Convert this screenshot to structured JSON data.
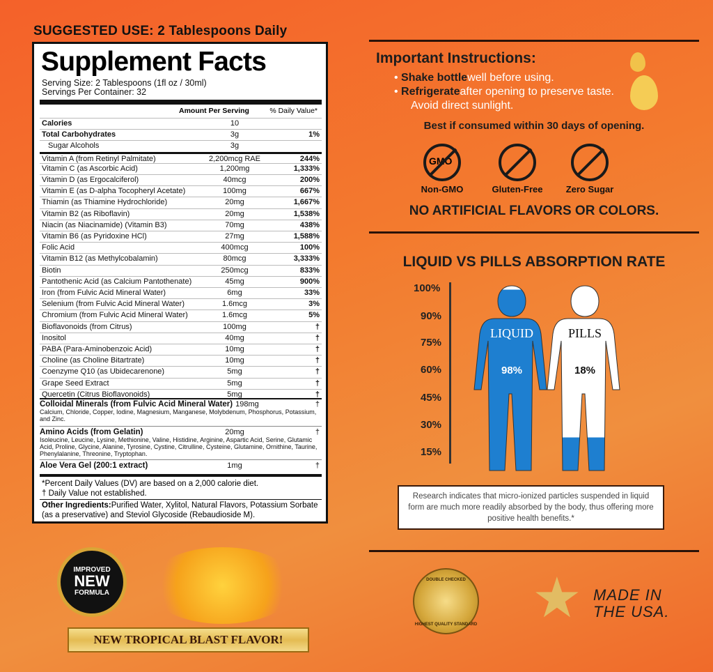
{
  "suggested_use": "SUGGESTED USE: 2 Tablespoons Daily",
  "facts": {
    "title": "Supplement Facts",
    "serving_size": "Serving Size: 2 Tablespoons (1fl oz / 30ml)",
    "servings": "Servings Per Container: 32",
    "col_amount": "Amount Per Serving",
    "col_dv": "% Daily Value*",
    "rows": [
      [
        "Calories",
        "10",
        "",
        true
      ],
      [
        "Total Carbohydrates",
        "3g",
        "1%",
        true
      ],
      [
        "  Sugar Alcohols",
        "3g",
        "",
        false
      ],
      [
        "Vitamin A (from Retinyl Palmitate)",
        "2,200mcg RAE",
        "244%",
        false
      ],
      [
        "Vitamin C (as Ascorbic Acid)",
        "1,200mg",
        "1,333%",
        false
      ],
      [
        "Vitamin D (as Ergocalciferol)",
        "40mcg",
        "200%",
        false
      ],
      [
        "Vitamin E (as D-alpha Tocopheryl Acetate)",
        "100mg",
        "667%",
        false
      ],
      [
        "Thiamin (as Thiamine Hydrochloride)",
        "20mg",
        "1,667%",
        false
      ],
      [
        "Vitamin B2 (as Riboflavin)",
        "20mg",
        "1,538%",
        false
      ],
      [
        "Niacin (as Niacinamide) (Vitamin B3)",
        "70mg",
        "438%",
        false
      ],
      [
        "Vitamin B6 (as Pyridoxine HCl)",
        "27mg",
        "1,588%",
        false
      ],
      [
        "Folic Acid",
        "400mcg",
        "100%",
        false
      ],
      [
        "Vitamin B12 (as Methylcobalamin)",
        "80mcg",
        "3,333%",
        false
      ],
      [
        "Biotin",
        "250mcg",
        "833%",
        false
      ],
      [
        "Pantothenic Acid (as Calcium Pantothenate)",
        "45mg",
        "900%",
        false
      ],
      [
        "Iron (from Fulvic Acid Mineral Water)",
        "6mg",
        "33%",
        false
      ],
      [
        "Selenium (from Fulvic Acid Mineral Water)",
        "1.6mcg",
        "3%",
        false
      ],
      [
        "Chromium (from Fulvic Acid Mineral Water)",
        "1.6mcg",
        "5%",
        false
      ],
      [
        "Bioflavonoids (from Citrus)",
        "100mg",
        "†",
        false
      ],
      [
        "Inositol",
        "40mg",
        "†",
        false
      ],
      [
        "PABA (Para-Aminobenzoic Acid)",
        "10mg",
        "†",
        false
      ],
      [
        "Choline (as Choline Bitartrate)",
        "10mg",
        "†",
        false
      ],
      [
        "Coenzyme Q10 (as Ubidecarenone)",
        "5mg",
        "†",
        false
      ],
      [
        "Grape Seed Extract",
        "5mg",
        "†",
        false
      ],
      [
        "Quercetin (Citrus Bioflavonoids)",
        "5mg",
        "†",
        false
      ]
    ],
    "colloidal": {
      "name": "Colloidal Minerals (from Fulvic Acid Mineral Water)",
      "amount": "198mg",
      "dv": "†",
      "sub": "Calcium, Chloride, Copper, Iodine, Magnesium, Manganese, Molybdenum, Phosphorus, Potassium, and Zinc."
    },
    "amino": {
      "name": "Amino Acids (from Gelatin)",
      "amount": "20mg",
      "dv": "†",
      "sub": "Isoleucine, Leucine, Lysine, Methionine, Valine, Histidine, Arginine, Aspartic Acid, Serine, Glutamic Acid, Proline, Glycine, Alanine, Tyrosine, Cystine, Citrulline, Cysteine, Glutamine, Ornithine, Taurine, Phenylalanine, Threonine, Tryptophan."
    },
    "aloe": {
      "name": "Aloe Vera Gel (200:1 extract)",
      "amount": "1mg",
      "dv": "†"
    },
    "footnote1": "*Percent Daily Values (DV) are based on a 2,000 calorie diet.",
    "footnote2": "† Daily Value not established.",
    "other_label": "Other Ingredients:",
    "other_text": " Purified Water, Xylitol, Natural Flavors, Potassium Sorbate (as a preservative) and Steviol Glycoside (Rebaudioside M)."
  },
  "instructions": {
    "title": "Important Instructions:",
    "b1_bold": "Shake bottle",
    "b1": " well before using.",
    "b2_bold": "Refrigerate",
    "b2": " after opening to preserve taste. Avoid direct sunlight.",
    "best": "Best if consumed within 30 days of opening.",
    "icons": [
      {
        "icon": "gmo-icon",
        "label": "Non-GMO",
        "glyph": "GMO"
      },
      {
        "icon": "wheat-icon",
        "label": "Gluten-Free",
        "glyph": "🌾"
      },
      {
        "icon": "sugar-cube-icon",
        "label": "Zero Sugar",
        "glyph": "◆"
      }
    ],
    "no_artificial": "NO ARTIFICIAL FLAVORS OR COLORS."
  },
  "absorption": {
    "title": "LIQUID VS PILLS ABSORPTION RATE",
    "ticks": [
      "100%",
      "90%",
      "75%",
      "60%",
      "45%",
      "30%",
      "15%"
    ],
    "liquid_label": "LIQUID",
    "liquid_value": "98%",
    "liquid_fill": 98,
    "pills_label": "PILLS",
    "pills_value": "18%",
    "pills_fill": 18,
    "liquid_color": "#1e7fd0",
    "research": "Research indicates that micro-ionized particles suspended in liquid form are much more readily absorbed by the body, thus offering more positive health benefits.*"
  },
  "badge": {
    "line1": "IMPROVED",
    "line2": "NEW",
    "line3": "FORMULA"
  },
  "flavor": "NEW TROPICAL BLAST FLAVOR!",
  "seal": {
    "top": "DOUBLE CHECKED",
    "bottom": "HIGHEST QUALITY STANDARD"
  },
  "made_in": {
    "line1": "MADE IN",
    "line2": "THE USA."
  }
}
